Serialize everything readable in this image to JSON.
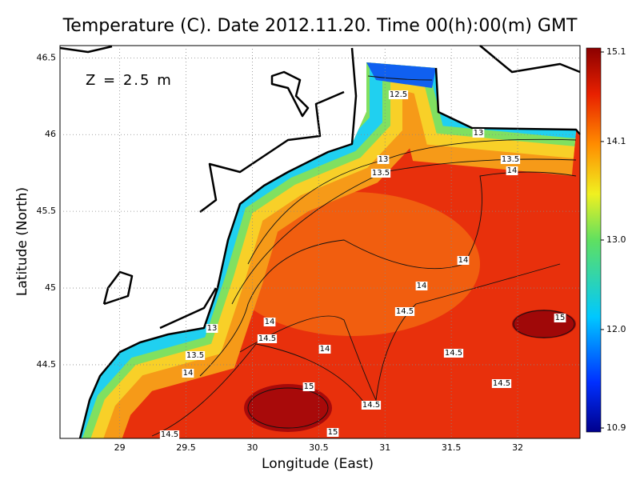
{
  "map": {
    "title": "Temperature (C). Date 2012.11.20. Time 00(h):00(m) GMT",
    "annotation": "Z = 2.5 m",
    "x_label": "Longitude (East)",
    "y_label": "Latitude (North)",
    "xlim": [
      28.55,
      32.47
    ],
    "ylim": [
      44.02,
      46.58
    ],
    "xticks": [
      29,
      29.5,
      30,
      30.5,
      31,
      31.5,
      32
    ],
    "yticks": [
      44.5,
      45,
      45.5,
      46,
      46.5
    ],
    "grid": true,
    "colorbar": {
      "lim": [
        10.9,
        15.1
      ],
      "ticks": [
        10.9,
        {
          "value": 12,
          "label": "12.0"
        },
        {
          "value": 13,
          "label": "13.0"
        },
        14.1,
        15.1
      ]
    },
    "contour_labels": [
      12.5,
      13,
      13,
      13.5,
      13.5,
      14,
      14,
      14,
      14.5,
      15,
      13,
      14,
      14.5,
      14,
      13.5,
      14.5,
      14,
      14.5,
      15,
      14.5,
      14.5,
      15
    ]
  }
}
